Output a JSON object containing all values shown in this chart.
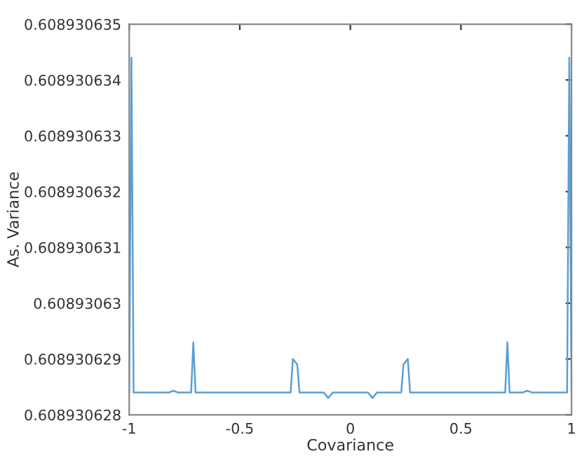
{
  "chart_data": {
    "type": "line",
    "xlabel": "Covariance",
    "ylabel": "As. Variance",
    "x": [
      -1,
      -0.99,
      -0.98,
      -0.82,
      -0.8,
      -0.78,
      -0.72,
      -0.71,
      -0.7,
      -0.27,
      -0.26,
      -0.24,
      -0.23,
      -0.12,
      -0.1,
      -0.08,
      0.08,
      0.1,
      0.12,
      0.23,
      0.24,
      0.26,
      0.27,
      0.7,
      0.71,
      0.72,
      0.78,
      0.8,
      0.82,
      0.98,
      0.99,
      1
    ],
    "series": [
      {
        "color": "#5a9fd4",
        "values": [
          0.6089306284,
          0.6089306344,
          0.6089306284,
          0.6089306284,
          0.60893062843,
          0.6089306284,
          0.6089306284,
          0.6089306293,
          0.6089306284,
          0.6089306284,
          0.608930629,
          0.6089306289,
          0.6089306284,
          0.6089306284,
          0.6089306283,
          0.6089306284,
          0.6089306284,
          0.6089306283,
          0.6089306284,
          0.6089306284,
          0.6089306289,
          0.608930629,
          0.6089306284,
          0.6089306284,
          0.6089306293,
          0.6089306284,
          0.6089306284,
          0.60893062843,
          0.6089306284,
          0.6089306284,
          0.6089306344,
          0.6089306284
        ]
      }
    ],
    "xlim": [
      -1,
      1
    ],
    "xticks": [
      -1,
      -0.5,
      0,
      0.5,
      1
    ],
    "ylim": [
      0.608930628,
      0.608930635
    ],
    "yticks": [
      0.608930628,
      0.608930629,
      0.60893063,
      0.608930631,
      0.608930632,
      0.608930633,
      0.608930634,
      0.608930635
    ],
    "grid": false,
    "legend": false,
    "marker": "none",
    "line_style": "solid"
  }
}
